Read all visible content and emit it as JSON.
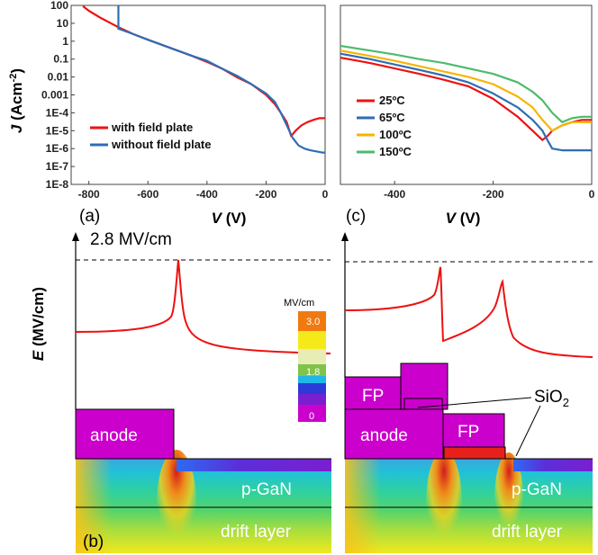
{
  "chart_data": [
    {
      "type": "line",
      "panel": "(a)",
      "xlabel_var": "V",
      "xlabel_unit": " (V)",
      "ylabel_var": "J",
      "ylabel_unit": " (Acm",
      "ylabel_sup": "-2",
      "ylabel_close": ")",
      "yscale": "log",
      "xlim": [
        -860,
        0
      ],
      "ylim": [
        1e-08,
        100
      ],
      "x_ticks": [
        "-800",
        "-600",
        "-400",
        "-200",
        "0"
      ],
      "x_tick_values": [
        -800,
        -600,
        -400,
        -200,
        0
      ],
      "y_ticks": [
        "100",
        "10",
        "1",
        "0.1",
        "0.01",
        "0.001",
        "1E-4",
        "1E-5",
        "1E-6",
        "1E-7",
        "1E-8"
      ],
      "y_tick_values": [
        100,
        10,
        1,
        0.1,
        0.01,
        0.001,
        0.0001,
        1e-05,
        1e-06,
        1e-07,
        1e-08
      ],
      "legend_position": "bottom-left",
      "series": [
        {
          "name": "with field plate",
          "color": "#ee1111",
          "x": [
            -820,
            -800,
            -760,
            -720,
            -700,
            -650,
            -600,
            -550,
            -500,
            -450,
            -400,
            -350,
            -300,
            -250,
            -200,
            -170,
            -150,
            -130,
            -115,
            -100,
            -80,
            -60,
            -40,
            -20,
            0
          ],
          "y": [
            90,
            50,
            20,
            9,
            6,
            2.5,
            1.2,
            0.6,
            0.3,
            0.15,
            0.07,
            0.03,
            0.01,
            0.004,
            0.001,
            0.0003,
            0.0001,
            3e-05,
            5e-06,
            1e-05,
            2e-05,
            3e-05,
            4e-05,
            5e-05,
            5e-05
          ]
        },
        {
          "name": "without field plate",
          "color": "#2f6db3",
          "x": [
            -700,
            -650,
            -600,
            -550,
            -500,
            -450,
            -400,
            -350,
            -300,
            -250,
            -200,
            -170,
            -150,
            -130,
            -110,
            -90,
            -70,
            -50,
            -30,
            -10,
            0
          ],
          "y": [
            5,
            2.5,
            1.2,
            0.6,
            0.3,
            0.15,
            0.08,
            0.03,
            0.012,
            0.004,
            0.0012,
            0.0004,
            0.0001,
            2e-05,
            4e-06,
            1.5e-06,
            1e-06,
            8e-07,
            7e-07,
            6e-07,
            6e-07
          ]
        }
      ]
    },
    {
      "type": "line",
      "panel": "(c)",
      "xlabel_var": "V",
      "xlabel_unit": " (V)",
      "yscale": "log",
      "xlim": [
        -510,
        0
      ],
      "ylim": [
        1e-08,
        100
      ],
      "x_ticks": [
        "-400",
        "-200",
        "0"
      ],
      "x_tick_values": [
        -400,
        -200,
        0
      ],
      "legend_position": "bottom-left",
      "series": [
        {
          "name": "25ºC",
          "color": "#ee1111",
          "x": [
            -510,
            -450,
            -400,
            -350,
            -300,
            -250,
            -200,
            -150,
            -120,
            -100,
            -90,
            -80,
            -60,
            -40,
            -20,
            0
          ],
          "y": [
            0.12,
            0.06,
            0.03,
            0.015,
            0.007,
            0.003,
            0.0006,
            6e-05,
            1e-05,
            3e-06,
            5e-06,
            1e-05,
            2e-05,
            3e-05,
            4e-05,
            4e-05
          ]
        },
        {
          "name": "65ºC",
          "color": "#2f6db3",
          "x": [
            -510,
            -450,
            -400,
            -350,
            -300,
            -250,
            -200,
            -150,
            -120,
            -100,
            -90,
            -80,
            -60,
            -40,
            -20,
            0
          ],
          "y": [
            0.2,
            0.1,
            0.05,
            0.025,
            0.012,
            0.005,
            0.0012,
            0.0002,
            4e-05,
            1e-05,
            3e-06,
            1e-06,
            8e-07,
            8e-07,
            8e-07,
            8e-07
          ]
        },
        {
          "name": "100ºC",
          "color": "#f7b500",
          "x": [
            -510,
            -450,
            -400,
            -350,
            -300,
            -250,
            -200,
            -150,
            -120,
            -100,
            -80,
            -60,
            -40,
            -20,
            0
          ],
          "y": [
            0.3,
            0.15,
            0.08,
            0.04,
            0.02,
            0.01,
            0.004,
            0.0008,
            0.0002,
            4e-05,
            1e-05,
            2e-05,
            3e-05,
            3e-05,
            3e-05
          ]
        },
        {
          "name": "150ºC",
          "color": "#4cbb6c",
          "x": [
            -510,
            -450,
            -400,
            -350,
            -300,
            -250,
            -200,
            -150,
            -120,
            -100,
            -80,
            -60,
            -40,
            -20,
            0
          ],
          "y": [
            0.55,
            0.3,
            0.18,
            0.1,
            0.06,
            0.03,
            0.015,
            0.005,
            0.0015,
            0.0005,
            0.0001,
            3e-05,
            5e-05,
            6e-05,
            6e-05
          ]
        }
      ]
    }
  ],
  "bottom": {
    "label_b": "(b)",
    "e_label_var": "E",
    "e_label_unit": " (MV/cm)",
    "max_field": "2.8 MV/cm",
    "colorbar": {
      "unit": "MV/cm",
      "labels": [
        "3.0",
        "1.8",
        "0"
      ]
    },
    "left_device": {
      "anode": "anode",
      "pgan": "p-GaN",
      "drift": "drift layer"
    },
    "right_device": {
      "fp1": "FP",
      "fp2": "FP",
      "anode": "anode",
      "pgan": "p-GaN",
      "drift": "drift layer",
      "oxide": "SiO",
      "oxide_sub": "2"
    }
  }
}
